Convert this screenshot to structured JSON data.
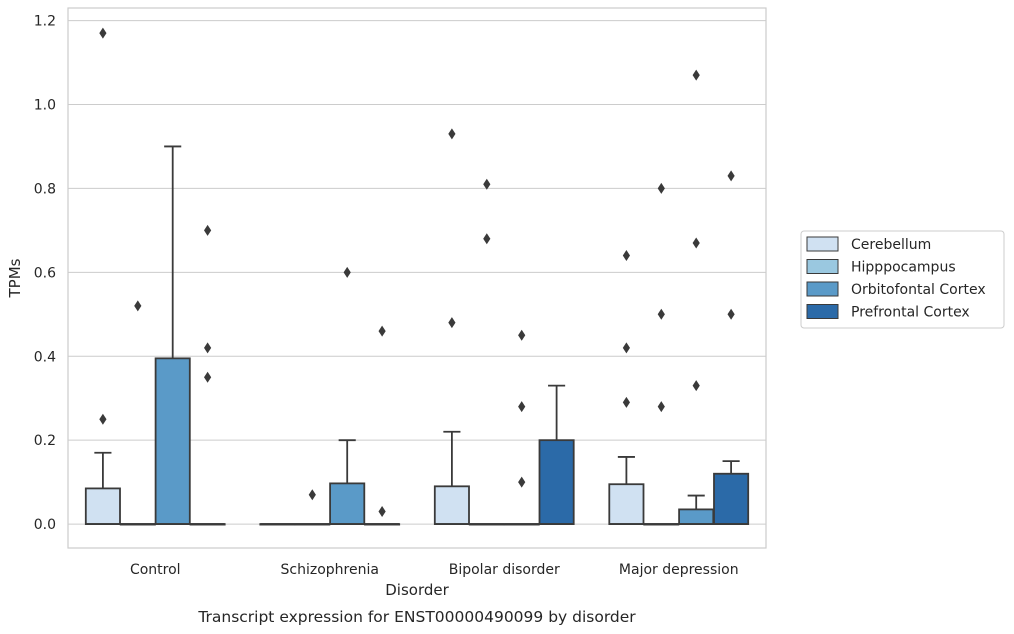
{
  "chart_data": {
    "type": "box",
    "caption": "Transcript expression for ENST00000490099 by disorder",
    "xlabel": "Disorder",
    "ylabel": "TPMs",
    "ylim": [
      -0.057,
      1.23
    ],
    "yticks": [
      "0.0",
      "0.2",
      "0.4",
      "0.6",
      "0.8",
      "1.0",
      "1.2"
    ],
    "grid": "horizontal",
    "legend_position": "right",
    "categories": [
      "Control",
      "Schizophrenia",
      "Bipolar disorder",
      "Major depression"
    ],
    "series": [
      {
        "name": "Cerebellum",
        "color": "#d0e1f2",
        "boxes": [
          {
            "q1": 0,
            "median": 0,
            "q3": 0.085,
            "whisker_low": 0,
            "whisker_high": 0.17,
            "outliers": [
              0.25,
              1.17
            ]
          },
          {
            "q1": 0,
            "median": 0,
            "q3": 0,
            "whisker_low": 0,
            "whisker_high": 0,
            "outliers": []
          },
          {
            "q1": 0,
            "median": 0,
            "q3": 0.09,
            "whisker_low": 0,
            "whisker_high": 0.22,
            "outliers": [
              0.48,
              0.93
            ]
          },
          {
            "q1": 0,
            "median": 0,
            "q3": 0.095,
            "whisker_low": 0,
            "whisker_high": 0.16,
            "outliers": [
              0.29,
              0.42,
              0.64
            ]
          }
        ]
      },
      {
        "name": "Hipppocampus",
        "color": "#9ac8e0",
        "boxes": [
          {
            "q1": 0,
            "median": 0,
            "q3": 0,
            "whisker_low": 0,
            "whisker_high": 0,
            "outliers": [
              0.52
            ]
          },
          {
            "q1": 0,
            "median": 0,
            "q3": 0,
            "whisker_low": 0,
            "whisker_high": 0,
            "outliers": [
              0.07
            ]
          },
          {
            "q1": 0,
            "median": 0,
            "q3": 0,
            "whisker_low": 0,
            "whisker_high": 0,
            "outliers": [
              0.68,
              0.81
            ]
          },
          {
            "q1": 0,
            "median": 0,
            "q3": 0,
            "whisker_low": 0,
            "whisker_high": 0,
            "outliers": [
              0.28,
              0.5,
              0.8
            ]
          }
        ]
      },
      {
        "name": "Orbitofontal Cortex",
        "color": "#5a9ac8",
        "boxes": [
          {
            "q1": 0,
            "median": 0,
            "q3": 0.395,
            "whisker_low": 0,
            "whisker_high": 0.9,
            "outliers": []
          },
          {
            "q1": 0,
            "median": 0,
            "q3": 0.097,
            "whisker_low": 0,
            "whisker_high": 0.2,
            "outliers": [
              0.6
            ]
          },
          {
            "q1": 0,
            "median": 0,
            "q3": 0,
            "whisker_low": 0,
            "whisker_high": 0,
            "outliers": [
              0.1,
              0.28,
              0.45
            ]
          },
          {
            "q1": 0,
            "median": 0,
            "q3": 0.035,
            "whisker_low": 0,
            "whisker_high": 0.068,
            "outliers": [
              0.33,
              0.67,
              1.07
            ]
          }
        ]
      },
      {
        "name": "Prefrontal Cortex",
        "color": "#2b6aa8",
        "boxes": [
          {
            "q1": 0,
            "median": 0,
            "q3": 0,
            "whisker_low": 0,
            "whisker_high": 0,
            "outliers": [
              0.35,
              0.42,
              0.7
            ]
          },
          {
            "q1": 0,
            "median": 0,
            "q3": 0,
            "whisker_low": 0,
            "whisker_high": 0,
            "outliers": [
              0.03,
              0.46
            ]
          },
          {
            "q1": 0,
            "median": 0,
            "q3": 0.2,
            "whisker_low": 0,
            "whisker_high": 0.33,
            "outliers": []
          },
          {
            "q1": 0,
            "median": 0,
            "q3": 0.12,
            "whisker_low": 0,
            "whisker_high": 0.15,
            "outliers": [
              0.5,
              0.83
            ]
          }
        ]
      }
    ]
  }
}
